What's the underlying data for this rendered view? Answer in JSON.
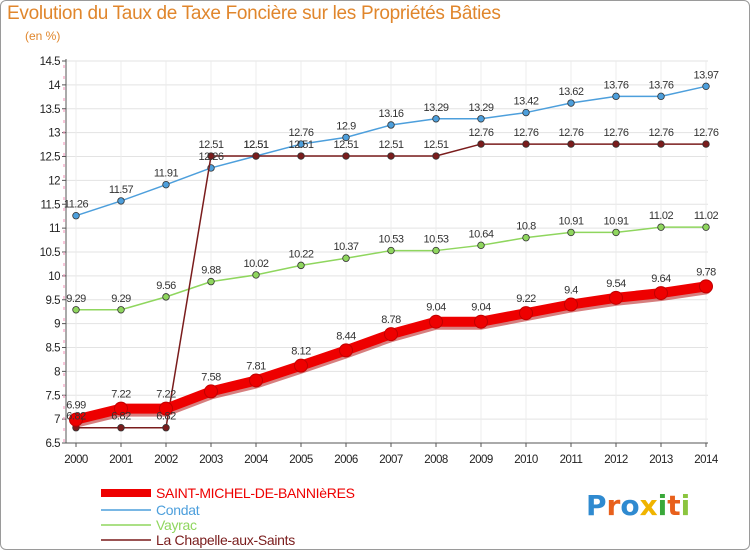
{
  "chart_data": {
    "type": "line",
    "title": "Evolution du Taux de Taxe Foncière sur les Propriétés Bâties",
    "unit_label": "(en %)",
    "xlabel": "",
    "ylabel": "",
    "x": [
      "2000",
      "2001",
      "2002",
      "2003",
      "2004",
      "2005",
      "2006",
      "2007",
      "2008",
      "2009",
      "2010",
      "2011",
      "2012",
      "2013",
      "2014"
    ],
    "ylim": [
      6.5,
      14.5
    ],
    "y_ticks": [
      "6.5",
      "7",
      "7.5",
      "8",
      "8.5",
      "9",
      "9.5",
      "10",
      "10.5",
      "11",
      "11.5",
      "12",
      "12.5",
      "13",
      "13.5",
      "14",
      "14.5"
    ],
    "grid": true,
    "legend_position": "bottom-left",
    "series": [
      {
        "name": "SAINT-MICHEL-DE-BANNIèRES",
        "color": "#ee0000",
        "width": "thick",
        "values": [
          6.99,
          7.22,
          7.22,
          7.58,
          7.81,
          8.12,
          8.44,
          8.78,
          9.04,
          9.04,
          9.22,
          9.4,
          9.54,
          9.64,
          9.78
        ],
        "labels": [
          "6.99",
          "7.22",
          "7.22",
          "7.58",
          "7.81",
          "8.12",
          "8.44",
          "8.78",
          "9.04",
          "9.04",
          "9.22",
          "9.4",
          "9.54",
          "9.64",
          "9.78"
        ]
      },
      {
        "name": "Condat",
        "color": "#4d9fdc",
        "width": "thin",
        "values": [
          11.26,
          11.57,
          11.91,
          12.26,
          12.51,
          12.76,
          12.9,
          13.16,
          13.29,
          13.29,
          13.42,
          13.62,
          13.76,
          13.76,
          13.97
        ],
        "labels": [
          "11.26",
          "11.57",
          "11.91",
          "12.26",
          "12.51",
          "12.76",
          "12.9",
          "13.16",
          "13.29",
          "13.29",
          "13.42",
          "13.62",
          "13.76",
          "13.76",
          "13.97"
        ]
      },
      {
        "name": "Vayrac",
        "color": "#8fd65e",
        "width": "thin",
        "values": [
          9.29,
          9.29,
          9.56,
          9.88,
          10.02,
          10.22,
          10.37,
          10.53,
          10.53,
          10.64,
          10.8,
          10.91,
          10.91,
          11.02,
          11.02
        ],
        "labels": [
          "9.29",
          "9.29",
          "9.56",
          "9.88",
          "10.02",
          "10.22",
          "10.37",
          "10.53",
          "10.53",
          "10.64",
          "10.8",
          "10.91",
          "10.91",
          "11.02",
          "11.02"
        ]
      },
      {
        "name": "La Chapelle-aux-Saints",
        "color": "#7a1c1c",
        "width": "thin",
        "values": [
          6.82,
          6.82,
          6.82,
          12.51,
          12.51,
          12.51,
          12.51,
          12.51,
          12.51,
          12.76,
          12.76,
          12.76,
          12.76,
          12.76,
          12.76
        ],
        "labels": [
          "6.82",
          "6.82",
          "6.82",
          "12.51",
          "12.51",
          "12.51",
          "12.51",
          "12.51",
          "12.51",
          "12.76",
          "12.76",
          "12.76",
          "12.76",
          "12.76",
          "12.76"
        ]
      }
    ]
  },
  "logo": {
    "letters": [
      "P",
      "r",
      "o",
      "x",
      "i",
      "t",
      "i"
    ]
  }
}
